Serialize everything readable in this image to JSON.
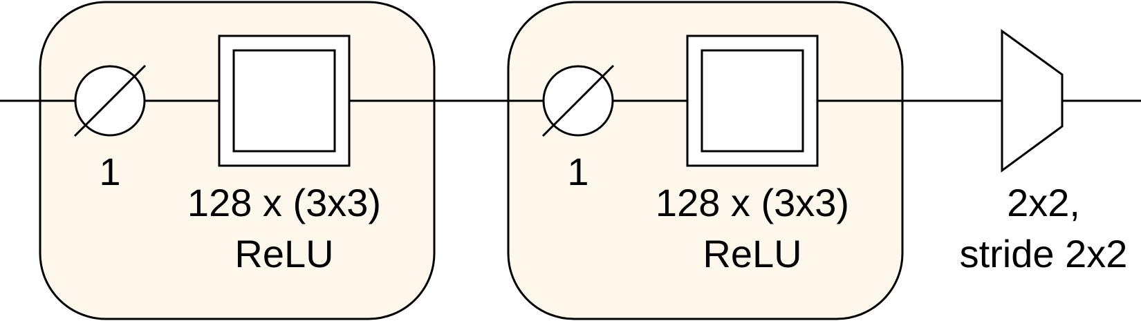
{
  "diagram": {
    "colors": {
      "block_fill": "#fdf8eb",
      "stroke": "#000000",
      "background": "#ffffff"
    },
    "blocks": [
      {
        "dropout_label": "1",
        "conv_label_line1": "128 x (3x3)",
        "conv_label_line2": "ReLU"
      },
      {
        "dropout_label": "1",
        "conv_label_line1": "128 x (3x3)",
        "conv_label_line2": "ReLU"
      }
    ],
    "pool": {
      "label_line1": "2x2,",
      "label_line2": "stride 2x2"
    }
  }
}
